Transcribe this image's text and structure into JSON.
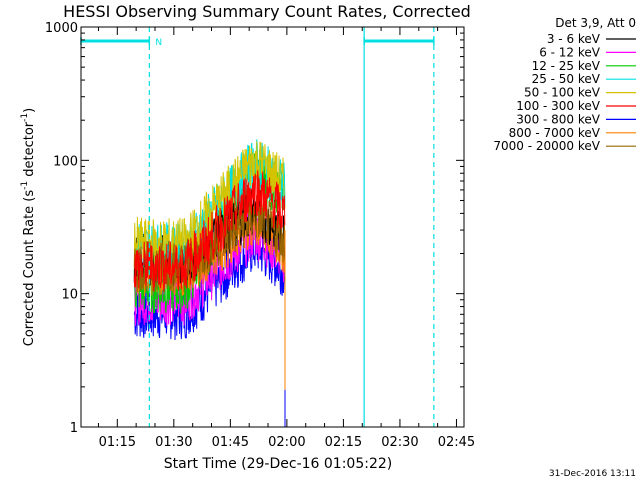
{
  "chart_data": {
    "type": "line",
    "title": "HESSI Observing Summary Count Rates, Corrected",
    "xlabel": "Start Time (29-Dec-16 01:05:22)",
    "ylabel_main": "Corrected Count Rate (s",
    "ylabel_sup1": "-1",
    "ylabel_mid": " detector",
    "ylabel_sup2": "-1",
    "ylabel_end": ")",
    "yscale": "log",
    "ylim": [
      1,
      1000
    ],
    "xlim": [
      "01:05:22",
      "02:47:00"
    ],
    "x_ticks": [
      "01:15",
      "01:30",
      "01:45",
      "02:00",
      "02:15",
      "02:30",
      "02:45"
    ],
    "y_ticks": [
      "1",
      "10",
      "100",
      "1000"
    ],
    "legend_title": "Det 3,9, Att 0",
    "legend_position": "top-right",
    "series": [
      {
        "name": "3 - 6 keV",
        "color": "#000000",
        "baseline": 18,
        "peak": 42
      },
      {
        "name": "6 - 12 keV",
        "color": "#ff00ff",
        "baseline": 9,
        "peak": 28
      },
      {
        "name": "12 - 25 keV",
        "color": "#00cc00",
        "baseline": 11,
        "peak": 80
      },
      {
        "name": "25 - 50 keV",
        "color": "#00e0e0",
        "baseline": 22,
        "peak": 95
      },
      {
        "name": "50 - 100 keV",
        "color": "#d4c400",
        "baseline": 24,
        "peak": 100
      },
      {
        "name": "100 - 300 keV",
        "color": "#ff0000",
        "baseline": 16,
        "peak": 60
      },
      {
        "name": "300 - 800 keV",
        "color": "#0000ff",
        "baseline": 7,
        "peak": 22
      },
      {
        "name": "800 - 7000 keV",
        "color": "#ff8000",
        "baseline": 15,
        "peak": 33
      },
      {
        "name": "7000 - 20000 keV",
        "color": "#996600",
        "baseline": 16,
        "peak": 38
      }
    ],
    "observing_intervals": [
      {
        "start": "01:05:22",
        "end": "01:23:30"
      },
      {
        "start": "02:20:30",
        "end": "02:39:00"
      }
    ],
    "data_span": {
      "start": "01:19:30",
      "peak": "01:52:00",
      "end": "01:59:30"
    },
    "annotations": [
      "N"
    ],
    "colors": {
      "axis": "#000000",
      "interval": "#00e0e0",
      "background": "#ffffff"
    }
  },
  "footer": {
    "timestamp": "31-Dec-2016 13:11"
  }
}
